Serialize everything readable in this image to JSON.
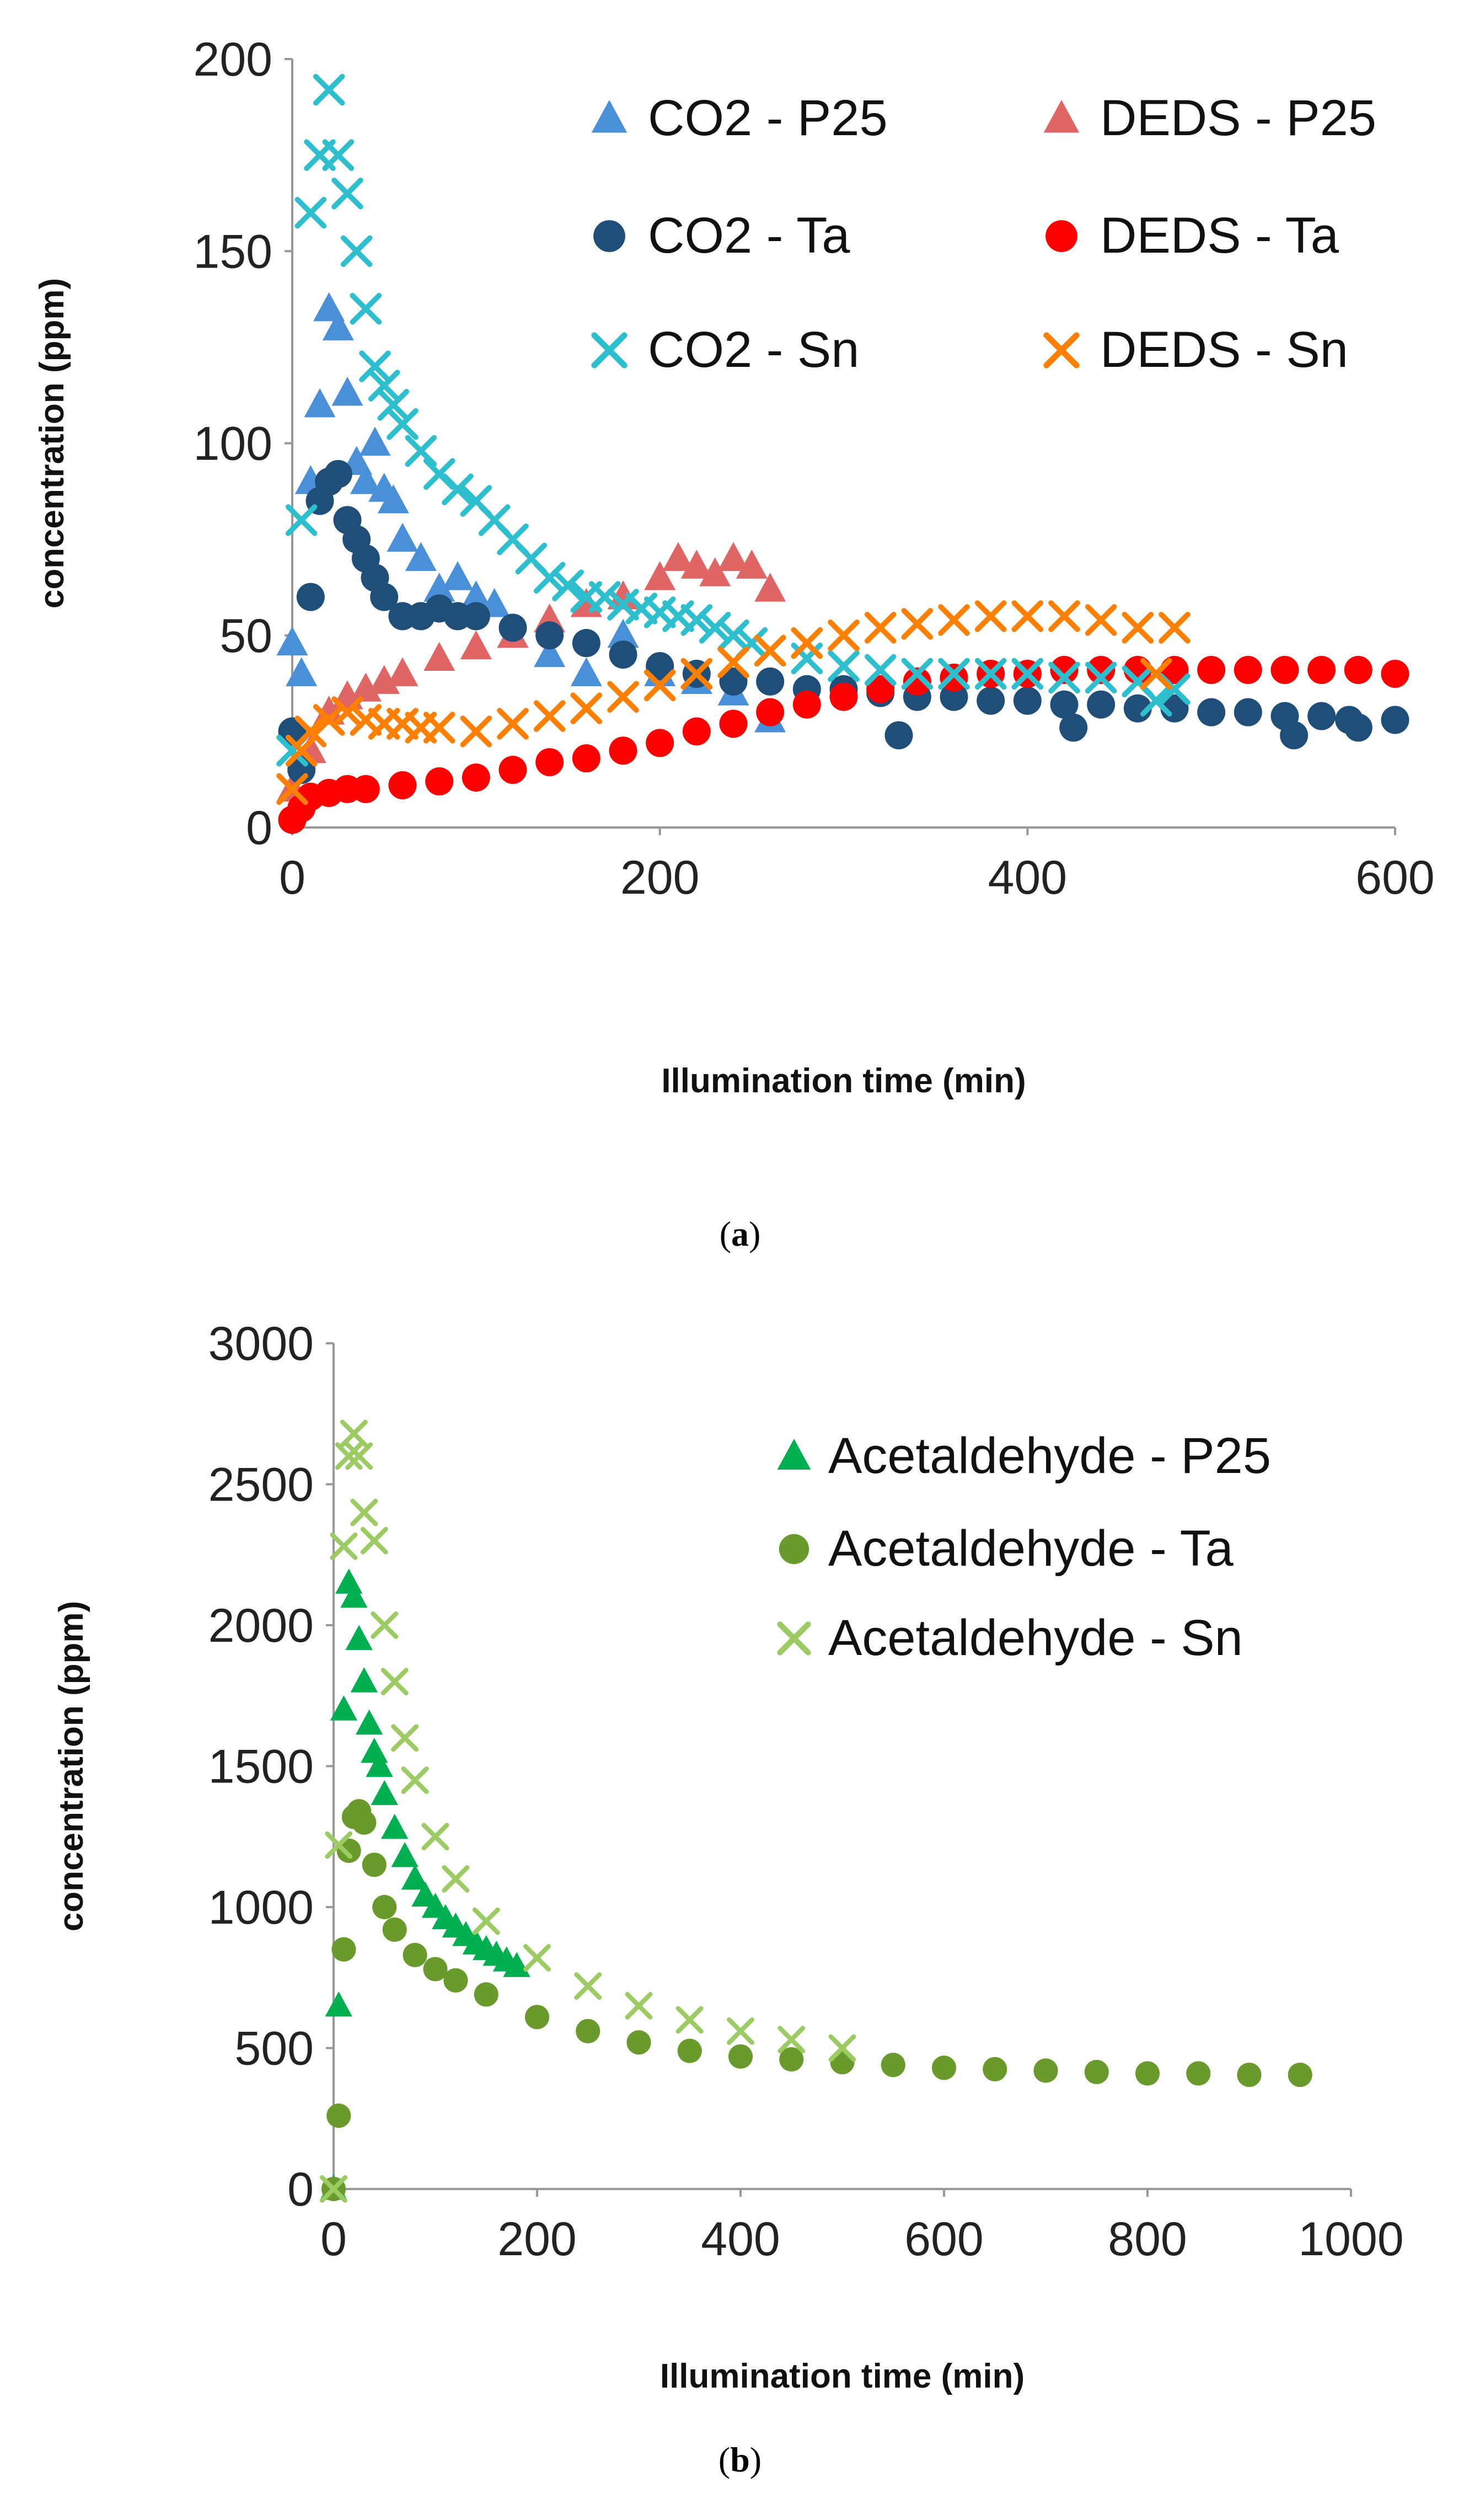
{
  "chart_data": [
    {
      "type": "scatter",
      "panel_label": "a",
      "xlabel": "Illumination time (min)",
      "ylabel": "concentration (ppm)",
      "xlim": [
        0,
        600
      ],
      "ylim": [
        0,
        200
      ],
      "xticks": [
        "0",
        "200",
        "400",
        "600"
      ],
      "yticks": [
        "0",
        "50",
        "100",
        "150",
        "200"
      ],
      "legend_position": "top-right",
      "series": [
        {
          "name": "CO2 - P25",
          "marker": "triangle",
          "color": "#4A90D9",
          "x": [
            0,
            5,
            10,
            15,
            20,
            25,
            30,
            35,
            40,
            45,
            50,
            55,
            60,
            70,
            80,
            90,
            100,
            110,
            120,
            140,
            160,
            180,
            200,
            220,
            240,
            260
          ],
          "y": [
            48,
            40,
            90,
            110,
            135,
            130,
            113,
            95,
            90,
            100,
            88,
            85,
            75,
            70,
            62,
            65,
            60,
            58,
            50,
            45,
            40,
            50,
            40,
            38,
            35,
            28
          ]
        },
        {
          "name": "DEDS - P25",
          "marker": "triangle",
          "color": "#E06666",
          "x": [
            0,
            10,
            20,
            30,
            40,
            50,
            60,
            80,
            100,
            120,
            140,
            160,
            180,
            200,
            210,
            220,
            230,
            240,
            250,
            260
          ],
          "y": [
            10,
            20,
            30,
            34,
            36,
            38,
            40,
            44,
            47,
            50,
            54,
            58,
            60,
            65,
            70,
            68,
            66,
            70,
            68,
            62
          ]
        },
        {
          "name": "CO2 - Ta",
          "marker": "circle",
          "color": "#1F4E79",
          "x": [
            0,
            5,
            10,
            15,
            20,
            25,
            30,
            35,
            40,
            45,
            50,
            60,
            70,
            80,
            90,
            100,
            120,
            140,
            160,
            180,
            200,
            220,
            240,
            260,
            280,
            300,
            320,
            330,
            340,
            360,
            380,
            400,
            420,
            425,
            440,
            460,
            480,
            500,
            520,
            540,
            545,
            560,
            575,
            580,
            600
          ],
          "y": [
            25,
            15,
            60,
            85,
            90,
            92,
            80,
            75,
            70,
            65,
            60,
            55,
            55,
            57,
            55,
            55,
            52,
            50,
            48,
            45,
            42,
            40,
            38,
            38,
            36,
            36,
            35,
            24,
            34,
            34,
            33,
            33,
            32,
            26,
            32,
            31,
            31,
            30,
            30,
            29,
            24,
            29,
            28,
            26,
            28
          ]
        },
        {
          "name": "DEDS - Ta",
          "marker": "circle",
          "color": "#FF0000",
          "x": [
            0,
            5,
            10,
            20,
            30,
            40,
            60,
            80,
            100,
            120,
            140,
            160,
            180,
            200,
            220,
            240,
            260,
            280,
            300,
            320,
            340,
            360,
            380,
            400,
            420,
            440,
            460,
            480,
            500,
            520,
            540,
            560,
            580,
            600
          ],
          "y": [
            2,
            5,
            8,
            9,
            10,
            10,
            11,
            12,
            13,
            15,
            17,
            18,
            20,
            22,
            25,
            27,
            30,
            32,
            34,
            36,
            38,
            39,
            40,
            40,
            41,
            41,
            41,
            41,
            41,
            41,
            41,
            41,
            41,
            40
          ]
        },
        {
          "name": "CO2 - Sn",
          "marker": "x",
          "color": "#2EBFCF",
          "x": [
            0,
            5,
            10,
            15,
            20,
            25,
            30,
            35,
            40,
            45,
            50,
            55,
            60,
            70,
            80,
            90,
            100,
            110,
            120,
            130,
            140,
            150,
            160,
            170,
            180,
            190,
            200,
            210,
            220,
            230,
            240,
            250,
            260,
            280,
            300,
            320,
            340,
            360,
            380,
            400,
            420,
            440,
            460,
            470,
            480
          ],
          "y": [
            20,
            80,
            160,
            175,
            192,
            175,
            165,
            150,
            135,
            120,
            115,
            110,
            105,
            98,
            92,
            88,
            85,
            80,
            75,
            70,
            65,
            63,
            60,
            60,
            58,
            57,
            56,
            55,
            54,
            52,
            50,
            48,
            46,
            44,
            42,
            41,
            40,
            40,
            40,
            40,
            39,
            39,
            38,
            33,
            36
          ]
        },
        {
          "name": "DEDS - Sn",
          "marker": "x",
          "color": "#FF7F00",
          "x": [
            0,
            5,
            10,
            20,
            30,
            40,
            50,
            60,
            70,
            80,
            100,
            120,
            140,
            160,
            180,
            200,
            220,
            240,
            260,
            280,
            300,
            320,
            340,
            360,
            380,
            400,
            420,
            440,
            460,
            470,
            480
          ],
          "y": [
            10,
            20,
            25,
            28,
            30,
            28,
            27,
            27,
            26,
            26,
            25,
            27,
            29,
            31,
            34,
            37,
            40,
            43,
            46,
            48,
            50,
            52,
            53,
            54,
            55,
            55,
            55,
            54,
            52,
            40,
            52
          ]
        }
      ]
    },
    {
      "type": "scatter",
      "panel_label": "b",
      "xlabel": "Illumination time (min)",
      "ylabel": "concentration (ppm)",
      "xlim": [
        0,
        1000
      ],
      "ylim": [
        0,
        3000
      ],
      "xticks": [
        "0",
        "200",
        "400",
        "600",
        "800",
        "1000"
      ],
      "yticks": [
        "0",
        "500",
        "1000",
        "1500",
        "2000",
        "2500",
        "3000"
      ],
      "legend_position": "top-right",
      "series": [
        {
          "name": "Acetaldehyde - P25",
          "marker": "triangle",
          "color": "#00B050",
          "x": [
            0,
            5,
            10,
            15,
            20,
            25,
            30,
            35,
            40,
            45,
            50,
            60,
            70,
            80,
            90,
            100,
            110,
            120,
            130,
            140,
            150,
            160,
            170,
            180
          ],
          "y": [
            0,
            650,
            1700,
            2150,
            2100,
            1950,
            1800,
            1650,
            1550,
            1500,
            1400,
            1280,
            1180,
            1100,
            1040,
            1000,
            960,
            930,
            900,
            870,
            850,
            830,
            810,
            790
          ]
        },
        {
          "name": "Acetaldehyde - Ta",
          "marker": "circle",
          "color": "#6A9A2B",
          "x": [
            0,
            5,
            10,
            15,
            20,
            25,
            30,
            40,
            50,
            60,
            80,
            100,
            120,
            150,
            200,
            250,
            300,
            350,
            400,
            450,
            500,
            550,
            600,
            650,
            700,
            750,
            800,
            850,
            900,
            950
          ],
          "y": [
            0,
            260,
            850,
            1200,
            1320,
            1340,
            1300,
            1150,
            1000,
            920,
            830,
            780,
            740,
            690,
            610,
            560,
            520,
            490,
            470,
            460,
            450,
            440,
            430,
            425,
            420,
            415,
            410,
            410,
            405,
            405
          ]
        },
        {
          "name": "Acetaldehyde - Sn",
          "marker": "x",
          "color": "#9BCB62",
          "x": [
            0,
            5,
            10,
            15,
            20,
            25,
            30,
            40,
            50,
            60,
            70,
            80,
            100,
            120,
            150,
            200,
            250,
            300,
            350,
            400,
            450,
            500
          ],
          "y": [
            0,
            1220,
            2280,
            2600,
            2680,
            2600,
            2400,
            2300,
            2000,
            1800,
            1600,
            1450,
            1250,
            1100,
            950,
            820,
            720,
            650,
            600,
            560,
            530,
            500
          ]
        }
      ]
    }
  ],
  "captions": {
    "a": "(a)",
    "b": "(b)"
  },
  "icons": {
    "triangle": "triangle-marker-icon",
    "circle": "circle-marker-icon",
    "x": "cross-marker-icon"
  }
}
